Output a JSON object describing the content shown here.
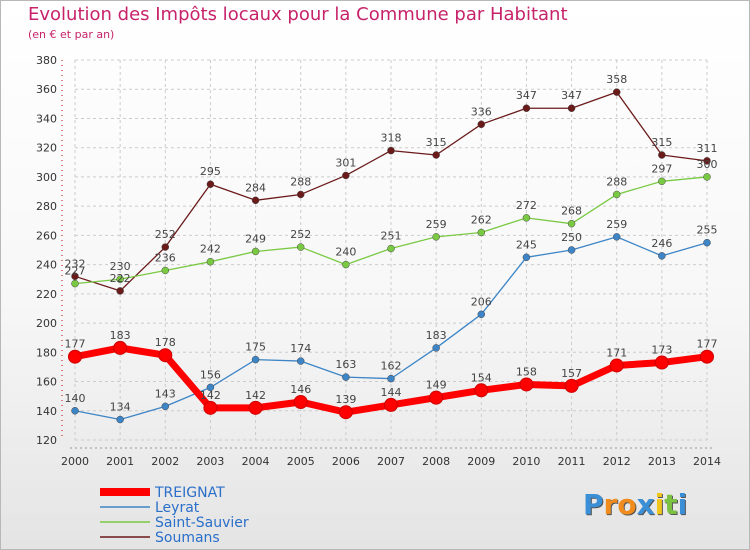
{
  "header": {
    "title": "Evolution des Impôts locaux pour la Commune par Habitant",
    "subtitle": "(en € et par an)"
  },
  "logo": {
    "letters": [
      "P",
      "r",
      "o",
      "x",
      "i",
      "t",
      "i"
    ],
    "colors": [
      "#3b8fd6",
      "#f08c1e",
      "#f08c1e",
      "#3b8fd6",
      "#f0c419",
      "#7cc242",
      "#3b8fd6"
    ]
  },
  "chart_data": {
    "type": "line",
    "x": [
      "2000",
      "2001",
      "2002",
      "2003",
      "2004",
      "2005",
      "2006",
      "2007",
      "2008",
      "2009",
      "2010",
      "2011",
      "2012",
      "2013",
      "2014"
    ],
    "ylim": [
      120,
      380
    ],
    "yticks": [
      120,
      140,
      160,
      180,
      200,
      220,
      240,
      260,
      280,
      300,
      320,
      340,
      360,
      380
    ],
    "grid": true,
    "legend": "bottom-left",
    "series": [
      {
        "name": "TREIGNAT",
        "color": "#ff0000",
        "emphasis": true,
        "values": [
          177,
          183,
          178,
          142,
          142,
          146,
          139,
          144,
          149,
          154,
          158,
          157,
          171,
          173,
          177
        ]
      },
      {
        "name": "Leyrat",
        "color": "#3d85c6",
        "values": [
          140,
          134,
          143,
          156,
          175,
          174,
          163,
          162,
          183,
          206,
          245,
          250,
          259,
          246,
          255
        ]
      },
      {
        "name": "Saint-Sauvier",
        "color": "#7ac943",
        "values": [
          227,
          230,
          236,
          242,
          249,
          252,
          240,
          251,
          259,
          262,
          272,
          268,
          288,
          297,
          300
        ]
      },
      {
        "name": "Soumans",
        "color": "#6b1a1a",
        "values": [
          232,
          222,
          252,
          295,
          284,
          288,
          301,
          318,
          315,
          336,
          347,
          347,
          358,
          315,
          311
        ]
      }
    ]
  }
}
